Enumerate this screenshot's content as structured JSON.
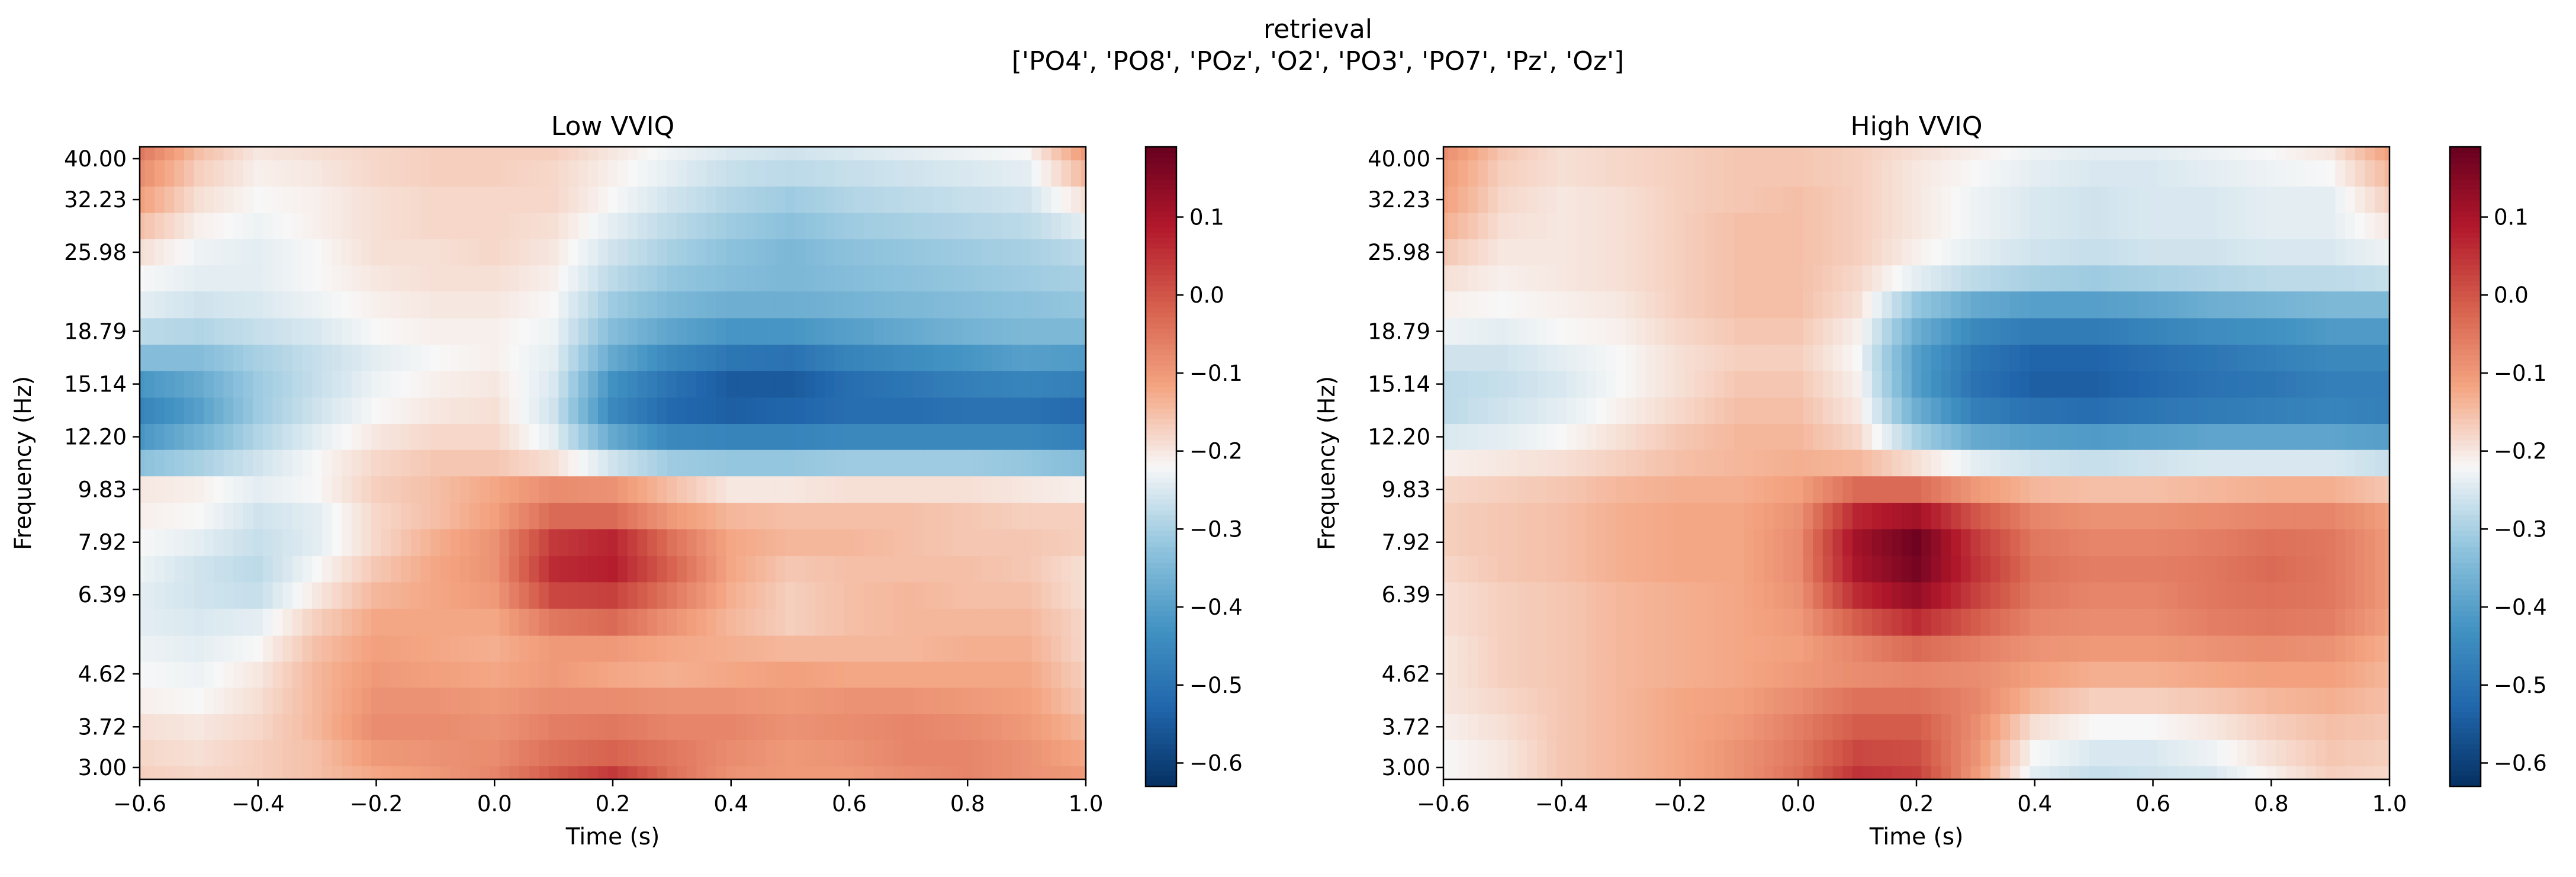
{
  "figure": {
    "title": "retrieval",
    "subtitle": "['PO4', 'PO8', 'POz', 'O2', 'PO3', 'PO7', 'Pz', 'Oz']"
  },
  "colormap": "RdBu_r",
  "chart_data": [
    {
      "type": "heatmap",
      "title": "Low VVIQ",
      "xlabel": "Time (s)",
      "ylabel": "Frequency (Hz)",
      "xlim": [
        -0.6,
        1.0
      ],
      "xticks": [
        -0.6,
        -0.4,
        -0.2,
        0.0,
        0.2,
        0.4,
        0.6,
        0.8,
        1.0
      ],
      "xtick_labels": [
        "−0.6",
        "−0.4",
        "−0.2",
        "0.0",
        "0.2",
        "0.4",
        "0.6",
        "0.8",
        "1.0"
      ],
      "yscale": "log",
      "ylim": [
        3.0,
        40.0
      ],
      "yticks": [
        40.0,
        32.23,
        25.98,
        18.79,
        15.14,
        12.2,
        9.83,
        7.92,
        6.39,
        4.62,
        3.72,
        3.0
      ],
      "ytick_labels": [
        "40.00",
        "32.23",
        "25.98",
        "18.79",
        "15.14",
        "12.20",
        "9.83",
        "7.92",
        "6.39",
        "4.62",
        "3.72",
        "3.00"
      ],
      "colorbar": {
        "vmin": -0.63,
        "vmax": 0.19,
        "ticks": [
          0.1,
          0.0,
          -0.1,
          -0.2,
          -0.3,
          -0.4,
          -0.5,
          -0.6
        ],
        "tick_labels": [
          "0.1",
          "0.0",
          "−0.1",
          "−0.2",
          "−0.3",
          "−0.4",
          "−0.5",
          "−0.6"
        ]
      },
      "freq_bins_hz": [
        3.0,
        3.35,
        3.72,
        4.14,
        4.62,
        5.12,
        5.72,
        6.39,
        7.1,
        7.92,
        8.85,
        9.83,
        11.0,
        12.2,
        13.6,
        15.14,
        16.9,
        18.79,
        21.0,
        23.4,
        25.98,
        29.0,
        32.23,
        36.0,
        40.0
      ],
      "time_points_s": [
        -0.6,
        -0.5,
        -0.4,
        -0.3,
        -0.2,
        -0.1,
        0.0,
        0.1,
        0.2,
        0.3,
        0.4,
        0.5,
        0.6,
        0.7,
        0.8,
        0.9,
        1.0
      ],
      "z_rows_low_to_high_freq": [
        [
          -0.17,
          -0.18,
          -0.17,
          -0.15,
          -0.12,
          -0.1,
          -0.07,
          -0.01,
          0.04,
          -0.04,
          -0.09,
          -0.1,
          -0.1,
          -0.08,
          -0.07,
          -0.09,
          -0.1
        ],
        [
          -0.18,
          -0.19,
          -0.17,
          -0.15,
          -0.1,
          -0.09,
          -0.08,
          -0.04,
          -0.02,
          -0.05,
          -0.08,
          -0.1,
          -0.09,
          -0.07,
          -0.07,
          -0.09,
          -0.12
        ],
        [
          -0.19,
          -0.2,
          -0.18,
          -0.14,
          -0.08,
          -0.08,
          -0.09,
          -0.06,
          -0.05,
          -0.07,
          -0.07,
          -0.09,
          -0.08,
          -0.07,
          -0.08,
          -0.1,
          -0.14
        ],
        [
          -0.21,
          -0.22,
          -0.19,
          -0.14,
          -0.09,
          -0.09,
          -0.1,
          -0.08,
          -0.08,
          -0.09,
          -0.09,
          -0.1,
          -0.09,
          -0.09,
          -0.1,
          -0.11,
          -0.16
        ],
        [
          -0.22,
          -0.23,
          -0.2,
          -0.14,
          -0.1,
          -0.11,
          -0.12,
          -0.1,
          -0.12,
          -0.13,
          -0.12,
          -0.11,
          -0.12,
          -0.12,
          -0.12,
          -0.12,
          -0.17
        ],
        [
          -0.23,
          -0.24,
          -0.22,
          -0.15,
          -0.11,
          -0.12,
          -0.13,
          -0.1,
          -0.1,
          -0.12,
          -0.13,
          -0.14,
          -0.14,
          -0.14,
          -0.13,
          -0.13,
          -0.18
        ],
        [
          -0.24,
          -0.25,
          -0.24,
          -0.17,
          -0.12,
          -0.12,
          -0.12,
          -0.05,
          -0.03,
          -0.09,
          -0.14,
          -0.17,
          -0.15,
          -0.14,
          -0.14,
          -0.14,
          -0.18
        ],
        [
          -0.24,
          -0.26,
          -0.27,
          -0.2,
          -0.14,
          -0.12,
          -0.1,
          0.02,
          0.03,
          -0.05,
          -0.13,
          -0.17,
          -0.15,
          -0.14,
          -0.15,
          -0.15,
          -0.19
        ],
        [
          -0.23,
          -0.26,
          -0.28,
          -0.22,
          -0.16,
          -0.12,
          -0.09,
          0.06,
          0.08,
          -0.02,
          -0.12,
          -0.16,
          -0.15,
          -0.15,
          -0.15,
          -0.16,
          -0.19
        ],
        [
          -0.22,
          -0.24,
          -0.27,
          -0.24,
          -0.18,
          -0.13,
          -0.09,
          0.04,
          0.07,
          -0.04,
          -0.12,
          -0.14,
          -0.14,
          -0.15,
          -0.16,
          -0.16,
          -0.17
        ],
        [
          -0.21,
          -0.22,
          -0.26,
          -0.24,
          -0.18,
          -0.15,
          -0.11,
          -0.03,
          -0.03,
          -0.1,
          -0.14,
          -0.15,
          -0.15,
          -0.15,
          -0.16,
          -0.17,
          -0.17
        ],
        [
          -0.2,
          -0.21,
          -0.24,
          -0.22,
          -0.17,
          -0.15,
          -0.12,
          -0.08,
          -0.09,
          -0.15,
          -0.2,
          -0.2,
          -0.19,
          -0.19,
          -0.19,
          -0.2,
          -0.21
        ],
        [
          -0.33,
          -0.3,
          -0.26,
          -0.22,
          -0.18,
          -0.16,
          -0.16,
          -0.19,
          -0.26,
          -0.31,
          -0.32,
          -0.32,
          -0.31,
          -0.31,
          -0.31,
          -0.32,
          -0.34
        ],
        [
          -0.42,
          -0.36,
          -0.29,
          -0.24,
          -0.2,
          -0.18,
          -0.18,
          -0.24,
          -0.38,
          -0.45,
          -0.46,
          -0.46,
          -0.45,
          -0.45,
          -0.45,
          -0.45,
          -0.47
        ],
        [
          -0.46,
          -0.4,
          -0.31,
          -0.26,
          -0.22,
          -0.2,
          -0.19,
          -0.26,
          -0.45,
          -0.52,
          -0.54,
          -0.53,
          -0.51,
          -0.51,
          -0.5,
          -0.5,
          -0.52
        ],
        [
          -0.42,
          -0.38,
          -0.31,
          -0.27,
          -0.23,
          -0.21,
          -0.2,
          -0.25,
          -0.43,
          -0.5,
          -0.55,
          -0.55,
          -0.51,
          -0.49,
          -0.47,
          -0.46,
          -0.47
        ],
        [
          -0.34,
          -0.34,
          -0.3,
          -0.27,
          -0.24,
          -0.22,
          -0.21,
          -0.24,
          -0.38,
          -0.45,
          -0.49,
          -0.5,
          -0.46,
          -0.44,
          -0.42,
          -0.4,
          -0.41
        ],
        [
          -0.28,
          -0.29,
          -0.27,
          -0.25,
          -0.22,
          -0.21,
          -0.21,
          -0.23,
          -0.34,
          -0.39,
          -0.42,
          -0.42,
          -0.4,
          -0.38,
          -0.36,
          -0.35,
          -0.35
        ],
        [
          -0.24,
          -0.26,
          -0.25,
          -0.23,
          -0.21,
          -0.2,
          -0.2,
          -0.22,
          -0.31,
          -0.35,
          -0.37,
          -0.37,
          -0.36,
          -0.35,
          -0.34,
          -0.33,
          -0.32
        ],
        [
          -0.22,
          -0.24,
          -0.24,
          -0.22,
          -0.2,
          -0.19,
          -0.19,
          -0.21,
          -0.28,
          -0.32,
          -0.34,
          -0.35,
          -0.34,
          -0.33,
          -0.32,
          -0.31,
          -0.3
        ],
        [
          -0.19,
          -0.23,
          -0.24,
          -0.22,
          -0.19,
          -0.19,
          -0.18,
          -0.2,
          -0.26,
          -0.3,
          -0.33,
          -0.35,
          -0.33,
          -0.32,
          -0.31,
          -0.3,
          -0.28
        ],
        [
          -0.15,
          -0.21,
          -0.23,
          -0.21,
          -0.19,
          -0.18,
          -0.18,
          -0.19,
          -0.24,
          -0.28,
          -0.31,
          -0.33,
          -0.31,
          -0.3,
          -0.29,
          -0.28,
          -0.24
        ],
        [
          -0.11,
          -0.19,
          -0.22,
          -0.21,
          -0.19,
          -0.18,
          -0.18,
          -0.18,
          -0.22,
          -0.26,
          -0.29,
          -0.31,
          -0.29,
          -0.28,
          -0.27,
          -0.26,
          -0.19
        ],
        [
          -0.08,
          -0.17,
          -0.21,
          -0.2,
          -0.18,
          -0.17,
          -0.17,
          -0.18,
          -0.21,
          -0.24,
          -0.27,
          -0.28,
          -0.27,
          -0.26,
          -0.25,
          -0.24,
          -0.14
        ],
        [
          -0.05,
          -0.15,
          -0.2,
          -0.19,
          -0.18,
          -0.17,
          -0.17,
          -0.17,
          -0.2,
          -0.23,
          -0.25,
          -0.26,
          -0.25,
          -0.24,
          -0.23,
          -0.22,
          -0.1
        ]
      ]
    },
    {
      "type": "heatmap",
      "title": "High VVIQ",
      "xlabel": "Time (s)",
      "ylabel": "Frequency (Hz)",
      "xlim": [
        -0.6,
        1.0
      ],
      "xticks": [
        -0.6,
        -0.4,
        -0.2,
        0.0,
        0.2,
        0.4,
        0.6,
        0.8,
        1.0
      ],
      "xtick_labels": [
        "−0.6",
        "−0.4",
        "−0.2",
        "0.0",
        "0.2",
        "0.4",
        "0.6",
        "0.8",
        "1.0"
      ],
      "yscale": "log",
      "ylim": [
        3.0,
        40.0
      ],
      "yticks": [
        40.0,
        32.23,
        25.98,
        18.79,
        15.14,
        12.2,
        9.83,
        7.92,
        6.39,
        4.62,
        3.72,
        3.0
      ],
      "ytick_labels": [
        "40.00",
        "32.23",
        "25.98",
        "18.79",
        "15.14",
        "12.20",
        "9.83",
        "7.92",
        "6.39",
        "4.62",
        "3.72",
        "3.00"
      ],
      "colorbar": {
        "vmin": -0.63,
        "vmax": 0.19,
        "ticks": [
          0.1,
          0.0,
          -0.1,
          -0.2,
          -0.3,
          -0.4,
          -0.5,
          -0.6
        ],
        "tick_labels": [
          "0.1",
          "0.0",
          "−0.1",
          "−0.2",
          "−0.3",
          "−0.4",
          "−0.5",
          "−0.6"
        ]
      },
      "freq_bins_hz": [
        3.0,
        3.35,
        3.72,
        4.14,
        4.62,
        5.12,
        5.72,
        6.39,
        7.1,
        7.92,
        8.85,
        9.83,
        11.0,
        12.2,
        13.6,
        15.14,
        16.9,
        18.79,
        21.0,
        23.4,
        25.98,
        29.0,
        32.23,
        36.0,
        40.0
      ],
      "time_points_s": [
        -0.6,
        -0.5,
        -0.4,
        -0.3,
        -0.2,
        -0.1,
        0.0,
        0.1,
        0.2,
        0.3,
        0.4,
        0.5,
        0.6,
        0.7,
        0.8,
        0.9,
        1.0
      ],
      "z_rows_low_to_high_freq": [
        [
          -0.22,
          -0.2,
          -0.16,
          -0.14,
          -0.12,
          -0.09,
          -0.04,
          0.05,
          0.03,
          -0.1,
          -0.24,
          -0.27,
          -0.26,
          -0.25,
          -0.21,
          -0.17,
          -0.18
        ],
        [
          -0.22,
          -0.2,
          -0.16,
          -0.14,
          -0.12,
          -0.09,
          -0.05,
          0.02,
          0.01,
          -0.09,
          -0.22,
          -0.25,
          -0.25,
          -0.23,
          -0.19,
          -0.16,
          -0.17
        ],
        [
          -0.21,
          -0.19,
          -0.16,
          -0.14,
          -0.12,
          -0.1,
          -0.06,
          -0.01,
          -0.01,
          -0.08,
          -0.19,
          -0.22,
          -0.22,
          -0.2,
          -0.17,
          -0.15,
          -0.16
        ],
        [
          -0.2,
          -0.18,
          -0.16,
          -0.14,
          -0.12,
          -0.11,
          -0.08,
          -0.04,
          -0.04,
          -0.07,
          -0.14,
          -0.17,
          -0.17,
          -0.16,
          -0.14,
          -0.13,
          -0.15
        ],
        [
          -0.2,
          -0.17,
          -0.16,
          -0.14,
          -0.13,
          -0.12,
          -0.1,
          -0.08,
          -0.07,
          -0.08,
          -0.11,
          -0.13,
          -0.13,
          -0.12,
          -0.11,
          -0.11,
          -0.14
        ],
        [
          -0.2,
          -0.17,
          -0.16,
          -0.14,
          -0.13,
          -0.12,
          -0.11,
          -0.07,
          -0.03,
          -0.06,
          -0.09,
          -0.1,
          -0.1,
          -0.09,
          -0.08,
          -0.09,
          -0.13
        ],
        [
          -0.19,
          -0.17,
          -0.16,
          -0.14,
          -0.13,
          -0.12,
          -0.1,
          -0.01,
          0.06,
          -0.01,
          -0.07,
          -0.08,
          -0.08,
          -0.06,
          -0.05,
          -0.06,
          -0.11
        ],
        [
          -0.19,
          -0.17,
          -0.16,
          -0.14,
          -0.13,
          -0.12,
          -0.09,
          0.06,
          0.13,
          0.03,
          -0.05,
          -0.07,
          -0.07,
          -0.05,
          -0.04,
          -0.05,
          -0.1
        ],
        [
          -0.18,
          -0.16,
          -0.15,
          -0.13,
          -0.12,
          -0.12,
          -0.08,
          0.1,
          0.17,
          0.05,
          -0.04,
          -0.06,
          -0.06,
          -0.05,
          -0.03,
          -0.05,
          -0.1
        ],
        [
          -0.17,
          -0.16,
          -0.15,
          -0.13,
          -0.12,
          -0.12,
          -0.08,
          0.11,
          0.18,
          0.04,
          -0.05,
          -0.07,
          -0.07,
          -0.06,
          -0.04,
          -0.05,
          -0.1
        ],
        [
          -0.17,
          -0.16,
          -0.15,
          -0.13,
          -0.12,
          -0.12,
          -0.09,
          0.07,
          0.11,
          0.0,
          -0.07,
          -0.09,
          -0.09,
          -0.08,
          -0.07,
          -0.07,
          -0.11
        ],
        [
          -0.18,
          -0.17,
          -0.16,
          -0.14,
          -0.13,
          -0.13,
          -0.11,
          -0.03,
          -0.03,
          -0.1,
          -0.14,
          -0.15,
          -0.15,
          -0.14,
          -0.13,
          -0.13,
          -0.16
        ],
        [
          -0.21,
          -0.2,
          -0.19,
          -0.17,
          -0.15,
          -0.14,
          -0.13,
          -0.14,
          -0.19,
          -0.24,
          -0.26,
          -0.27,
          -0.26,
          -0.25,
          -0.25,
          -0.25,
          -0.27
        ],
        [
          -0.25,
          -0.24,
          -0.22,
          -0.19,
          -0.16,
          -0.14,
          -0.14,
          -0.18,
          -0.3,
          -0.38,
          -0.4,
          -0.41,
          -0.4,
          -0.39,
          -0.39,
          -0.39,
          -0.4
        ],
        [
          -0.28,
          -0.26,
          -0.24,
          -0.21,
          -0.18,
          -0.15,
          -0.15,
          -0.2,
          -0.37,
          -0.47,
          -0.5,
          -0.51,
          -0.49,
          -0.48,
          -0.47,
          -0.46,
          -0.47
        ],
        [
          -0.28,
          -0.27,
          -0.25,
          -0.22,
          -0.19,
          -0.16,
          -0.16,
          -0.21,
          -0.4,
          -0.5,
          -0.54,
          -0.54,
          -0.52,
          -0.5,
          -0.49,
          -0.47,
          -0.47
        ],
        [
          -0.26,
          -0.26,
          -0.24,
          -0.22,
          -0.19,
          -0.17,
          -0.17,
          -0.22,
          -0.4,
          -0.49,
          -0.53,
          -0.53,
          -0.51,
          -0.49,
          -0.47,
          -0.45,
          -0.45
        ],
        [
          -0.23,
          -0.24,
          -0.22,
          -0.21,
          -0.18,
          -0.16,
          -0.16,
          -0.21,
          -0.37,
          -0.45,
          -0.48,
          -0.48,
          -0.46,
          -0.44,
          -0.43,
          -0.41,
          -0.41
        ],
        [
          -0.21,
          -0.22,
          -0.21,
          -0.2,
          -0.17,
          -0.15,
          -0.15,
          -0.19,
          -0.32,
          -0.38,
          -0.4,
          -0.4,
          -0.39,
          -0.37,
          -0.36,
          -0.35,
          -0.35
        ],
        [
          -0.19,
          -0.21,
          -0.2,
          -0.19,
          -0.17,
          -0.15,
          -0.15,
          -0.18,
          -0.24,
          -0.28,
          -0.3,
          -0.31,
          -0.3,
          -0.29,
          -0.28,
          -0.28,
          -0.27
        ],
        [
          -0.16,
          -0.2,
          -0.2,
          -0.19,
          -0.17,
          -0.15,
          -0.15,
          -0.17,
          -0.21,
          -0.24,
          -0.26,
          -0.27,
          -0.26,
          -0.26,
          -0.25,
          -0.25,
          -0.23
        ],
        [
          -0.13,
          -0.19,
          -0.2,
          -0.19,
          -0.17,
          -0.15,
          -0.15,
          -0.17,
          -0.2,
          -0.23,
          -0.25,
          -0.26,
          -0.25,
          -0.25,
          -0.24,
          -0.24,
          -0.2
        ],
        [
          -0.11,
          -0.18,
          -0.2,
          -0.19,
          -0.17,
          -0.16,
          -0.15,
          -0.17,
          -0.2,
          -0.23,
          -0.25,
          -0.26,
          -0.25,
          -0.25,
          -0.24,
          -0.24,
          -0.17
        ],
        [
          -0.1,
          -0.17,
          -0.19,
          -0.18,
          -0.17,
          -0.16,
          -0.16,
          -0.17,
          -0.2,
          -0.22,
          -0.24,
          -0.25,
          -0.25,
          -0.24,
          -0.23,
          -0.22,
          -0.14
        ],
        [
          -0.08,
          -0.16,
          -0.19,
          -0.18,
          -0.17,
          -0.16,
          -0.16,
          -0.17,
          -0.19,
          -0.21,
          -0.23,
          -0.24,
          -0.24,
          -0.23,
          -0.22,
          -0.2,
          -0.11
        ]
      ]
    }
  ]
}
